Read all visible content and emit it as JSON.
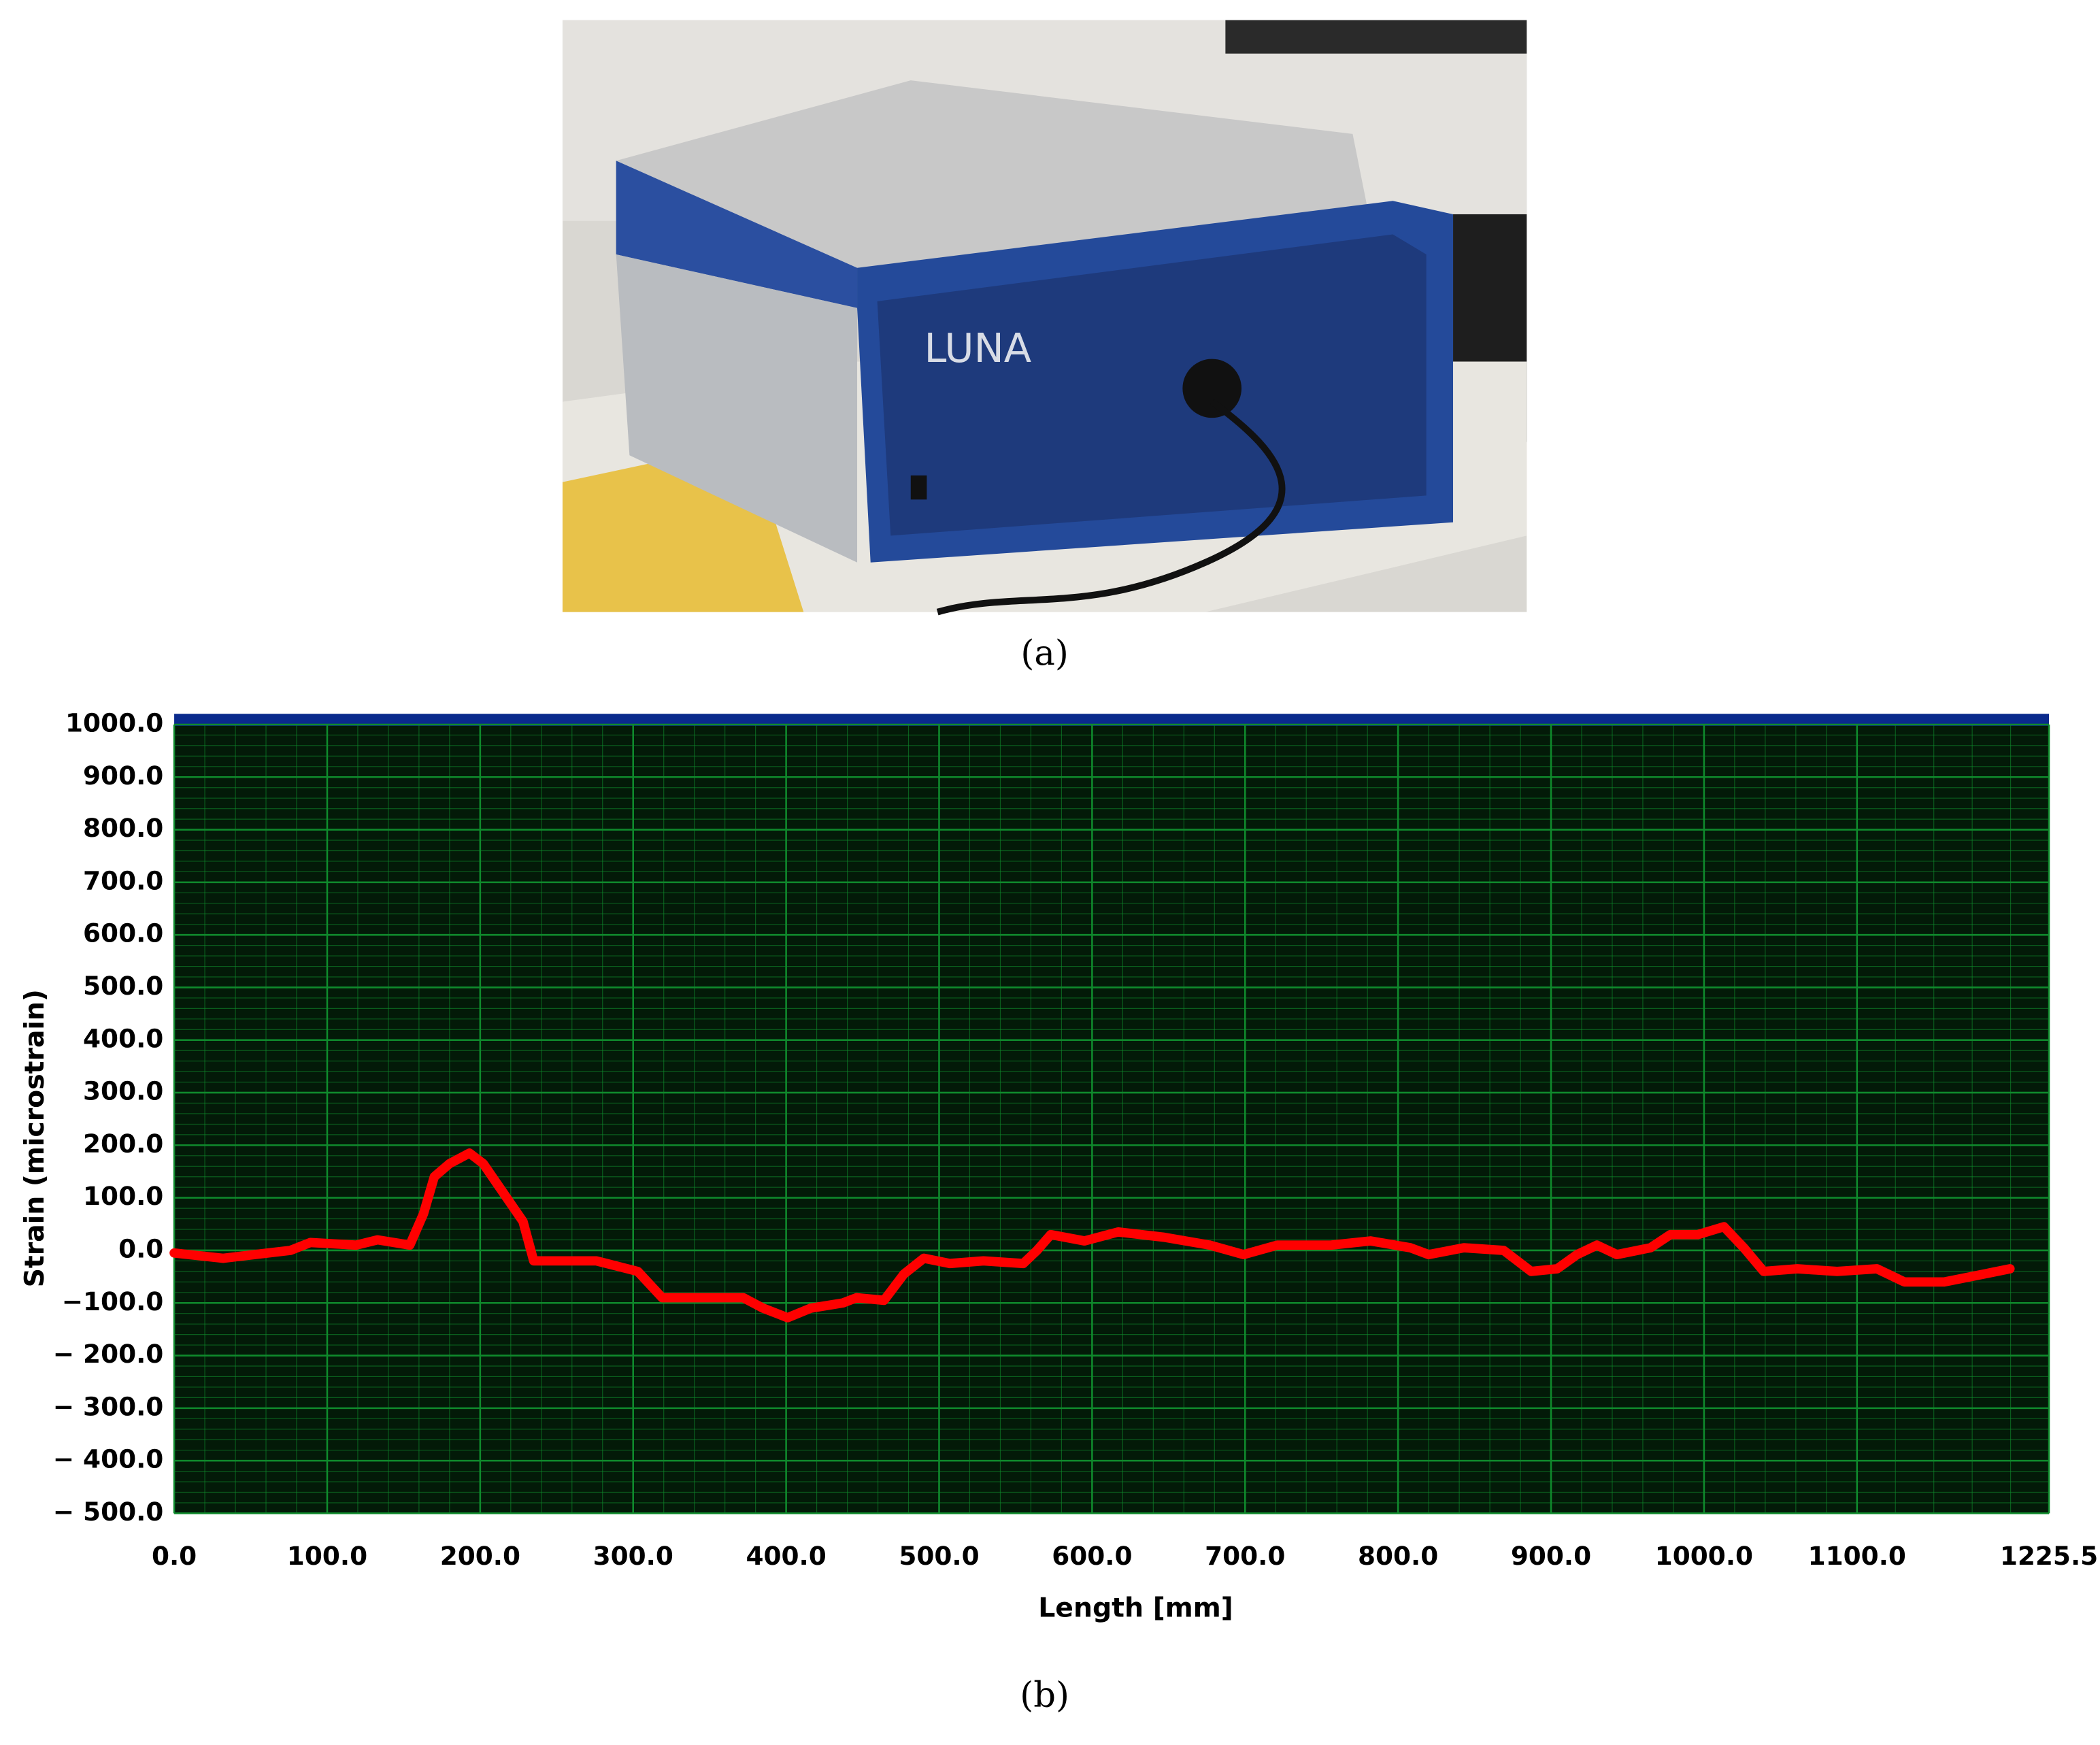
{
  "panel_labels": [
    "(a)",
    "(b)"
  ],
  "photo": {
    "logo": "LUNA"
  },
  "chart_data": {
    "type": "line",
    "x_label": "Length [mm]",
    "y_label": "Strain (microstrain)",
    "xlim": [
      0,
      1225.5
    ],
    "ylim": [
      -500,
      1000
    ],
    "xticks": [
      {
        "value": 0,
        "label": "0.0"
      },
      {
        "value": 100,
        "label": "100.0"
      },
      {
        "value": 200,
        "label": "200.0"
      },
      {
        "value": 300,
        "label": "300.0"
      },
      {
        "value": 400,
        "label": "400.0"
      },
      {
        "value": 500,
        "label": "500.0"
      },
      {
        "value": 600,
        "label": "600.0"
      },
      {
        "value": 700,
        "label": "700.0"
      },
      {
        "value": 800,
        "label": "800.0"
      },
      {
        "value": 900,
        "label": "900.0"
      },
      {
        "value": 1000,
        "label": "1000.0"
      },
      {
        "value": 1100,
        "label": "1100.0"
      },
      1225.5
    ],
    "yticks": [
      {
        "value": 1000,
        "label": "1000.0"
      },
      {
        "value": 900,
        "label": "900.0"
      },
      {
        "value": 800,
        "label": "800.0"
      },
      {
        "value": 700,
        "label": "700.0"
      },
      {
        "value": 600,
        "label": "600.0"
      },
      {
        "value": 500,
        "label": "500.0"
      },
      {
        "value": 400,
        "label": "400.0"
      },
      {
        "value": 300,
        "label": "300.0"
      },
      {
        "value": 200,
        "label": "200.0"
      },
      {
        "value": 100,
        "label": "100.0"
      },
      {
        "value": 0,
        "label": "0.0"
      },
      {
        "value": -100,
        "label": "−100.0"
      },
      {
        "value": -200,
        "label": "− 200.0"
      },
      {
        "value": -300,
        "label": "− 300.0"
      },
      {
        "value": -400,
        "label": "− 400.0"
      },
      {
        "value": -500,
        "label": "− 500.0"
      }
    ],
    "grid": true,
    "minor_grid": true,
    "background": "#031a08",
    "grid_color": "#0f8a2c",
    "series": [
      {
        "color": "#ff0000",
        "x": [
          0,
          32,
          76,
          89,
          119,
          133,
          154,
          163,
          170,
          180,
          193,
          202,
          215,
          228,
          235,
          276,
          303,
          319,
          372,
          385,
          401,
          416,
          437,
          446,
          464,
          477,
          490,
          507,
          529,
          555,
          564,
          573,
          595,
          617,
          647,
          677,
          699,
          721,
          756,
          782,
          808,
          820,
          843,
          869,
          887,
          904,
          917,
          930,
          943,
          965,
          978,
          996,
          1013,
          1026,
          1039,
          1061,
          1087,
          1113,
          1131,
          1157,
          1183,
          1200
        ],
        "values": [
          -5,
          -15,
          0,
          15,
          10,
          20,
          10,
          70,
          140,
          165,
          185,
          165,
          110,
          55,
          -20,
          -20,
          -40,
          -90,
          -90,
          -110,
          -128,
          -110,
          -100,
          -90,
          -95,
          -45,
          -15,
          -25,
          -20,
          -25,
          0,
          30,
          18,
          35,
          25,
          10,
          -8,
          10,
          10,
          18,
          5,
          -8,
          5,
          0,
          -40,
          -35,
          -8,
          10,
          -8,
          5,
          30,
          30,
          45,
          5,
          -40,
          -35,
          -40,
          -35,
          -60,
          -60,
          -45,
          -35
        ]
      }
    ]
  }
}
